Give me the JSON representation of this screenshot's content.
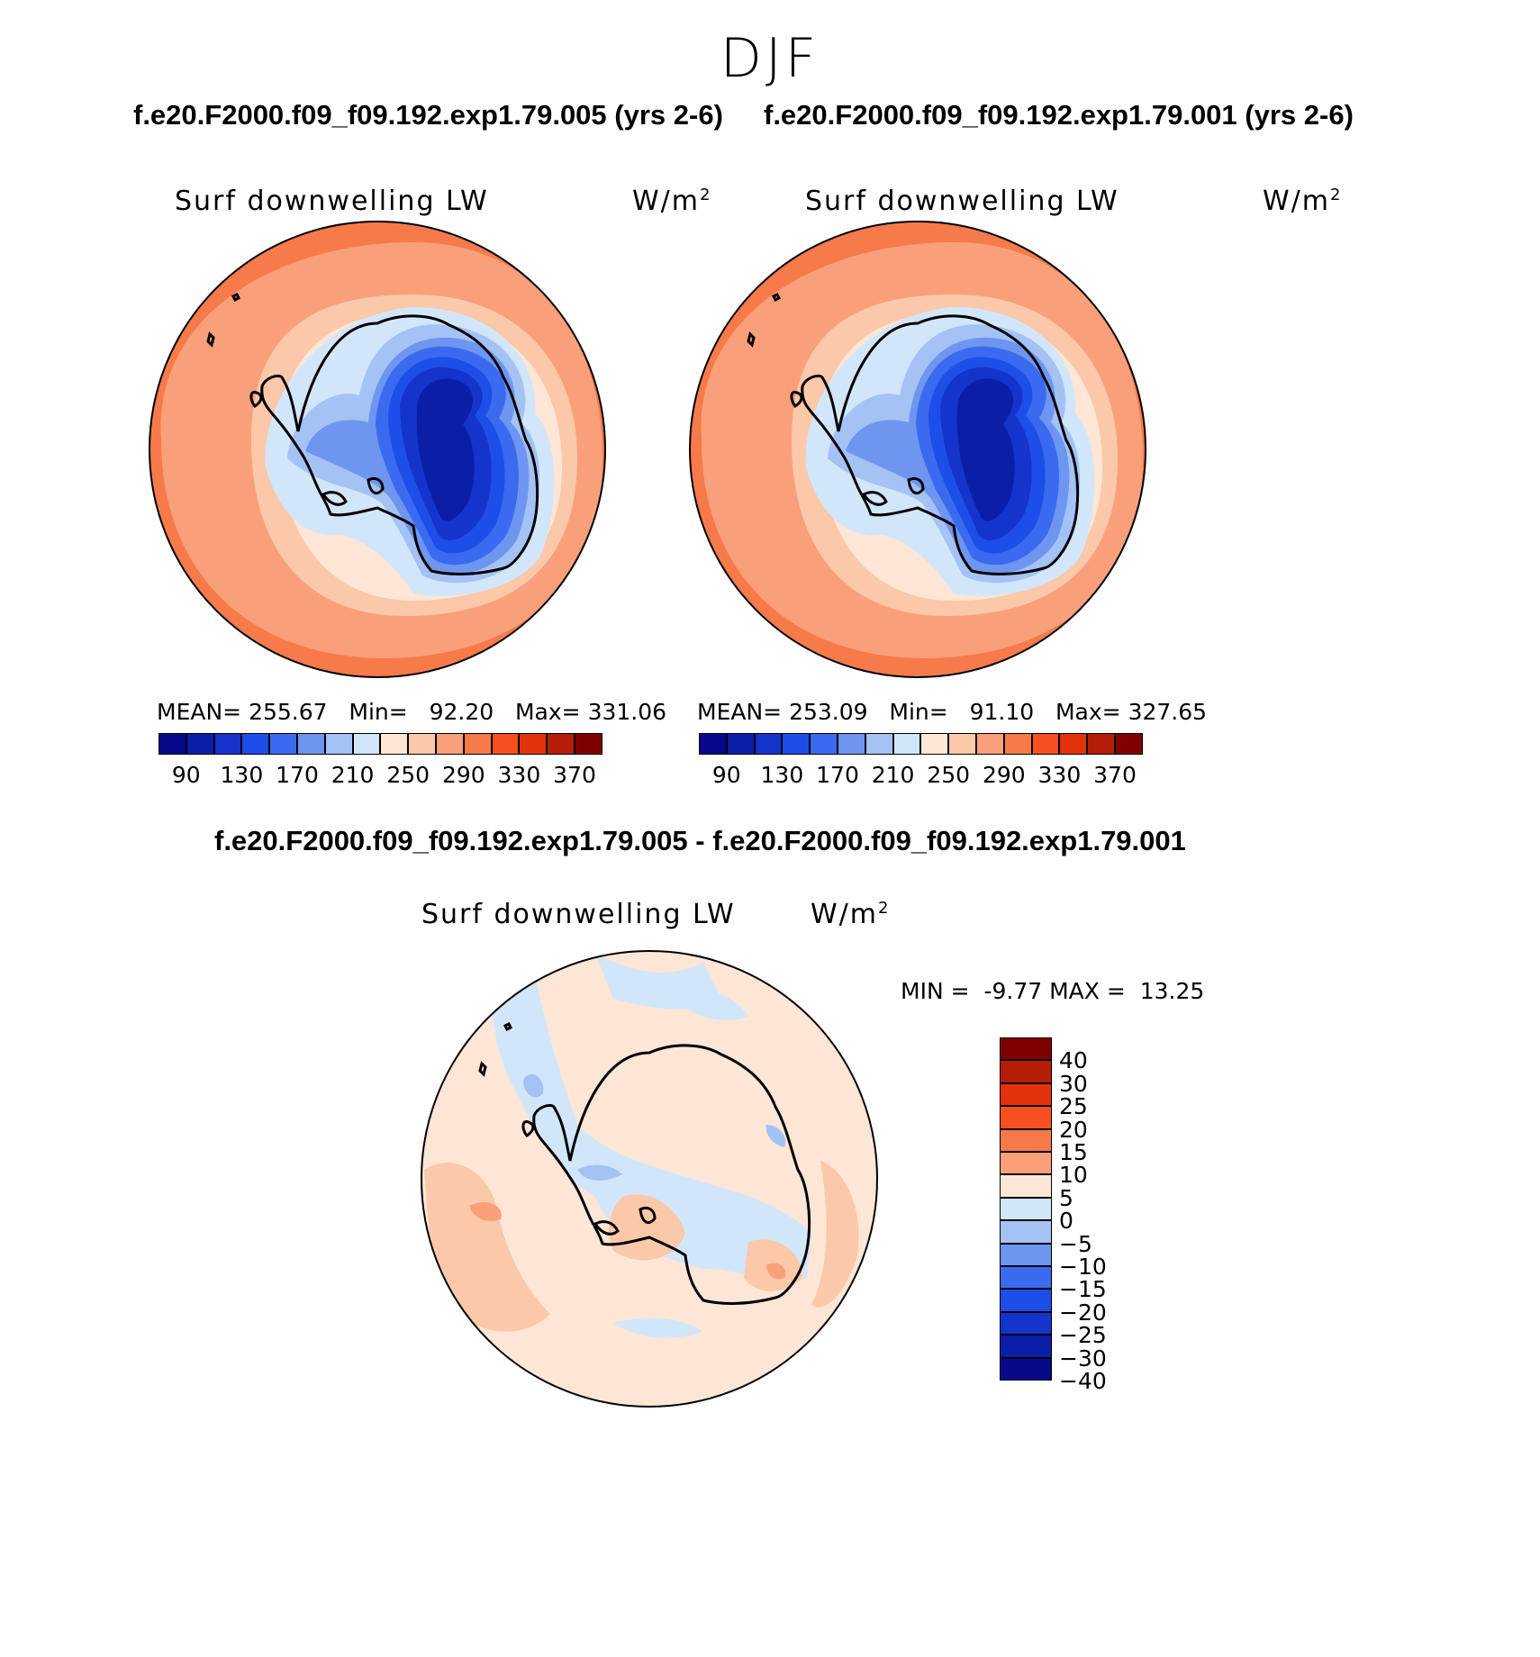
{
  "season": "DJF",
  "case_titles": {
    "left": "f.e20.F2000.f09_f09.192.exp1.79.005 (yrs 2-6)",
    "right": "f.e20.F2000.f09_f09.192.exp1.79.001 (yrs 2-6)",
    "diff": "f.e20.F2000.f09_f09.192.exp1.79.005 - f.e20.F2000.f09_f09.192.exp1.79.001"
  },
  "variable": "Surf downwelling LW",
  "units": "W/m",
  "units_exp": "2",
  "panels": [
    {
      "name": "case-005",
      "mean_label": "MEAN=",
      "mean": "255.67",
      "min_label": "Min=",
      "min": "92.20",
      "max_label": "Max=",
      "max": "331.06"
    },
    {
      "name": "case-001",
      "mean_label": "MEAN=",
      "mean": "253.09",
      "min_label": "Min=",
      "min": "91.10",
      "max_label": "Max=",
      "max": "327.65"
    }
  ],
  "diff_panel": {
    "min_label": "MIN =",
    "min": "-9.77",
    "max_label": "MAX =",
    "max": "13.25"
  },
  "colorbar_abs": {
    "colors": [
      "#08088a",
      "#0a1ea8",
      "#1434cc",
      "#1e4ee8",
      "#3a6af0",
      "#6e96f0",
      "#a4c2f4",
      "#d2e6fa",
      "#fde6d6",
      "#fbc8aa",
      "#f9a07a",
      "#f77a4a",
      "#f65020",
      "#e4320c",
      "#b41e06",
      "#800000"
    ],
    "ticks": [
      "90",
      "130",
      "170",
      "210",
      "250",
      "290",
      "330",
      "370"
    ]
  },
  "colorbar_diff": {
    "colors": [
      "#800000",
      "#b41e06",
      "#e4320c",
      "#f65020",
      "#f77a4a",
      "#f9a07a",
      "#fde6d6",
      "#d2e6fa",
      "#a4c2f4",
      "#6e96f0",
      "#3a6af0",
      "#1e4ee8",
      "#1434cc",
      "#0a1ea8",
      "#08088a"
    ],
    "ticks": [
      "40",
      "30",
      "25",
      "20",
      "15",
      "10",
      "5",
      "0",
      "−5",
      "−10",
      "−15",
      "−20",
      "−25",
      "−30",
      "−40"
    ]
  }
}
